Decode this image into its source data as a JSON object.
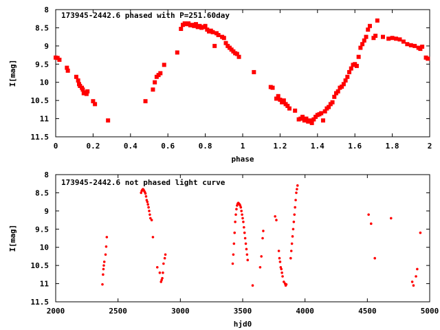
{
  "chart_data": [
    {
      "type": "scatter",
      "title": "173945-2442.6 phased with P=251.60day",
      "xlabel": "phase",
      "ylabel": "I[mag]",
      "xlim": [
        0,
        2
      ],
      "ylim": [
        11.5,
        8
      ],
      "y_inverted": true,
      "grid": false,
      "marker": "square",
      "color": "#ff0000",
      "xticks": [
        0,
        0.2,
        0.4,
        0.6,
        0.8,
        1,
        1.2,
        1.4,
        1.6,
        1.8,
        2
      ],
      "xtick_labels": [
        "0",
        "0.2",
        "0.4",
        "0.6",
        "0.8",
        "1",
        "1.2",
        "1.4",
        "1.6",
        "1.8",
        "2"
      ],
      "yticks": [
        8,
        8.5,
        9,
        9.5,
        10,
        10.5,
        11,
        11.5
      ],
      "ytick_labels": [
        "8",
        "8.5",
        "9",
        "9.5",
        "10",
        "10.5",
        "11",
        "11.5"
      ],
      "series": [
        {
          "points": [
            [
              0.0,
              9.32
            ],
            [
              0.01,
              9.33
            ],
            [
              0.02,
              9.38
            ],
            [
              0.06,
              9.6
            ],
            [
              0.065,
              9.68
            ],
            [
              0.11,
              9.85
            ],
            [
              0.12,
              9.95
            ],
            [
              0.125,
              10.05
            ],
            [
              0.13,
              10.1
            ],
            [
              0.14,
              10.15
            ],
            [
              0.145,
              10.2
            ],
            [
              0.15,
              10.3
            ],
            [
              0.16,
              10.28
            ],
            [
              0.165,
              10.32
            ],
            [
              0.17,
              10.25
            ],
            [
              0.2,
              10.52
            ],
            [
              0.21,
              10.6
            ],
            [
              0.28,
              11.05
            ],
            [
              0.48,
              10.52
            ],
            [
              0.52,
              10.2
            ],
            [
              0.53,
              10.0
            ],
            [
              0.54,
              9.85
            ],
            [
              0.55,
              9.8
            ],
            [
              0.56,
              9.75
            ],
            [
              0.58,
              9.52
            ],
            [
              0.65,
              9.18
            ],
            [
              0.67,
              8.53
            ],
            [
              0.68,
              8.42
            ],
            [
              0.69,
              8.38
            ],
            [
              0.7,
              8.4
            ],
            [
              0.71,
              8.38
            ],
            [
              0.72,
              8.43
            ],
            [
              0.73,
              8.42
            ],
            [
              0.74,
              8.45
            ],
            [
              0.75,
              8.4
            ],
            [
              0.76,
              8.48
            ],
            [
              0.77,
              8.45
            ],
            [
              0.78,
              8.5
            ],
            [
              0.79,
              8.48
            ],
            [
              0.8,
              8.45
            ],
            [
              0.81,
              8.55
            ],
            [
              0.82,
              8.6
            ],
            [
              0.83,
              8.58
            ],
            [
              0.84,
              8.62
            ],
            [
              0.85,
              9.0
            ],
            [
              0.86,
              8.65
            ],
            [
              0.87,
              8.7
            ],
            [
              0.89,
              8.75
            ],
            [
              0.9,
              8.78
            ],
            [
              0.91,
              8.92
            ],
            [
              0.92,
              9.0
            ],
            [
              0.93,
              9.05
            ],
            [
              0.94,
              9.1
            ],
            [
              0.95,
              9.15
            ],
            [
              0.96,
              9.2
            ],
            [
              0.97,
              9.22
            ],
            [
              0.98,
              9.3
            ],
            [
              1.06,
              9.72
            ],
            [
              1.15,
              10.13
            ],
            [
              1.16,
              10.15
            ],
            [
              1.18,
              10.45
            ],
            [
              1.19,
              10.38
            ],
            [
              1.2,
              10.48
            ],
            [
              1.21,
              10.55
            ],
            [
              1.22,
              10.5
            ],
            [
              1.23,
              10.6
            ],
            [
              1.24,
              10.65
            ],
            [
              1.25,
              10.72
            ],
            [
              1.28,
              10.78
            ],
            [
              1.3,
              11.02
            ],
            [
              1.31,
              11.0
            ],
            [
              1.32,
              10.95
            ],
            [
              1.33,
              11.05
            ],
            [
              1.34,
              11.0
            ],
            [
              1.35,
              11.08
            ],
            [
              1.36,
              11.05
            ],
            [
              1.37,
              11.12
            ],
            [
              1.38,
              11.02
            ],
            [
              1.39,
              10.95
            ],
            [
              1.4,
              10.9
            ],
            [
              1.41,
              10.88
            ],
            [
              1.42,
              10.85
            ],
            [
              1.43,
              11.05
            ],
            [
              1.44,
              10.8
            ],
            [
              1.45,
              10.72
            ],
            [
              1.46,
              10.68
            ],
            [
              1.47,
              10.6
            ],
            [
              1.48,
              10.55
            ],
            [
              1.49,
              10.4
            ],
            [
              1.5,
              10.3
            ],
            [
              1.51,
              10.25
            ],
            [
              1.52,
              10.15
            ],
            [
              1.53,
              10.12
            ],
            [
              1.54,
              10.05
            ],
            [
              1.55,
              9.95
            ],
            [
              1.56,
              9.85
            ],
            [
              1.57,
              9.72
            ],
            [
              1.58,
              9.62
            ],
            [
              1.59,
              9.52
            ],
            [
              1.6,
              9.5
            ],
            [
              1.61,
              9.55
            ],
            [
              1.62,
              9.3
            ],
            [
              1.63,
              9.05
            ],
            [
              1.64,
              8.95
            ],
            [
              1.65,
              8.85
            ],
            [
              1.66,
              8.75
            ],
            [
              1.67,
              8.55
            ],
            [
              1.68,
              8.45
            ],
            [
              1.7,
              8.78
            ],
            [
              1.71,
              8.72
            ],
            [
              1.72,
              8.3
            ],
            [
              1.75,
              8.75
            ],
            [
              1.78,
              8.8
            ],
            [
              1.8,
              8.78
            ],
            [
              1.82,
              8.8
            ],
            [
              1.84,
              8.82
            ],
            [
              1.86,
              8.88
            ],
            [
              1.88,
              8.95
            ],
            [
              1.9,
              8.98
            ],
            [
              1.92,
              9.0
            ],
            [
              1.94,
              9.05
            ],
            [
              1.95,
              9.08
            ],
            [
              1.96,
              9.02
            ],
            [
              1.98,
              9.32
            ],
            [
              1.99,
              9.35
            ]
          ]
        }
      ]
    },
    {
      "type": "scatter",
      "title": "173945-2442.6 not phased light curve",
      "xlabel": "hjd0",
      "ylabel": "I[mag]",
      "xlim": [
        2000,
        5000
      ],
      "ylim": [
        11.5,
        8
      ],
      "y_inverted": true,
      "grid": false,
      "marker": "dot",
      "color": "#ff0000",
      "xticks": [
        2000,
        2500,
        3000,
        3500,
        4000,
        4500,
        5000
      ],
      "xtick_labels": [
        "2000",
        "2500",
        "3000",
        "3500",
        "4000",
        "4500",
        "5000"
      ],
      "yticks": [
        8,
        8.5,
        9,
        9.5,
        10,
        10.5,
        11,
        11.5
      ],
      "ytick_labels": [
        "8",
        "8.5",
        "9",
        "9.5",
        "10",
        "10.5",
        "11",
        "11.5"
      ],
      "series": [
        {
          "points": [
            [
              2375,
              11.02
            ],
            [
              2380,
              10.75
            ],
            [
              2383,
              10.6
            ],
            [
              2386,
              10.5
            ],
            [
              2390,
              10.4
            ],
            [
              2400,
              10.2
            ],
            [
              2405,
              9.98
            ],
            [
              2410,
              9.72
            ],
            [
              2685,
              8.5
            ],
            [
              2690,
              8.45
            ],
            [
              2695,
              8.42
            ],
            [
              2700,
              8.4
            ],
            [
              2705,
              8.42
            ],
            [
              2710,
              8.45
            ],
            [
              2715,
              8.48
            ],
            [
              2720,
              8.52
            ],
            [
              2725,
              8.6
            ],
            [
              2730,
              8.7
            ],
            [
              2735,
              8.75
            ],
            [
              2740,
              8.82
            ],
            [
              2745,
              8.9
            ],
            [
              2750,
              9.0
            ],
            [
              2755,
              9.1
            ],
            [
              2760,
              9.2
            ],
            [
              2770,
              9.25
            ],
            [
              2780,
              9.72
            ],
            [
              2815,
              10.55
            ],
            [
              2835,
              10.7
            ],
            [
              2845,
              10.95
            ],
            [
              2850,
              10.9
            ],
            [
              2855,
              10.85
            ],
            [
              2860,
              10.7
            ],
            [
              2865,
              10.45
            ],
            [
              2875,
              10.3
            ],
            [
              2880,
              10.2
            ],
            [
              3420,
              10.45
            ],
            [
              3425,
              10.2
            ],
            [
              3430,
              9.9
            ],
            [
              3435,
              9.6
            ],
            [
              3440,
              9.3
            ],
            [
              3445,
              9.1
            ],
            [
              3450,
              8.95
            ],
            [
              3455,
              8.85
            ],
            [
              3460,
              8.8
            ],
            [
              3465,
              8.78
            ],
            [
              3470,
              8.8
            ],
            [
              3475,
              8.82
            ],
            [
              3480,
              8.85
            ],
            [
              3485,
              8.9
            ],
            [
              3490,
              9.0
            ],
            [
              3495,
              9.1
            ],
            [
              3500,
              9.2
            ],
            [
              3505,
              9.3
            ],
            [
              3510,
              9.45
            ],
            [
              3515,
              9.6
            ],
            [
              3520,
              9.75
            ],
            [
              3525,
              9.9
            ],
            [
              3530,
              10.05
            ],
            [
              3535,
              10.2
            ],
            [
              3540,
              10.35
            ],
            [
              3580,
              11.05
            ],
            [
              3640,
              10.55
            ],
            [
              3650,
              10.25
            ],
            [
              3660,
              9.75
            ],
            [
              3665,
              9.55
            ],
            [
              3760,
              9.15
            ],
            [
              3770,
              9.25
            ],
            [
              3790,
              10.1
            ],
            [
              3795,
              10.3
            ],
            [
              3800,
              10.4
            ],
            [
              3805,
              10.55
            ],
            [
              3810,
              10.6
            ],
            [
              3815,
              10.7
            ],
            [
              3820,
              10.8
            ],
            [
              3830,
              10.95
            ],
            [
              3840,
              11.0
            ],
            [
              3845,
              11.05
            ],
            [
              3850,
              11.02
            ],
            [
              3885,
              10.3
            ],
            [
              3890,
              10.1
            ],
            [
              3895,
              9.9
            ],
            [
              3900,
              9.7
            ],
            [
              3905,
              9.5
            ],
            [
              3910,
              9.3
            ],
            [
              3915,
              9.1
            ],
            [
              3920,
              8.9
            ],
            [
              3925,
              8.7
            ],
            [
              3930,
              8.5
            ],
            [
              3935,
              8.4
            ],
            [
              3940,
              8.3
            ],
            [
              4510,
              9.1
            ],
            [
              4530,
              9.35
            ],
            [
              4560,
              10.3
            ],
            [
              4690,
              9.2
            ],
            [
              4860,
              10.95
            ],
            [
              4870,
              11.05
            ],
            [
              4890,
              10.8
            ],
            [
              4900,
              10.6
            ],
            [
              4925,
              9.6
            ]
          ]
        }
      ]
    }
  ]
}
